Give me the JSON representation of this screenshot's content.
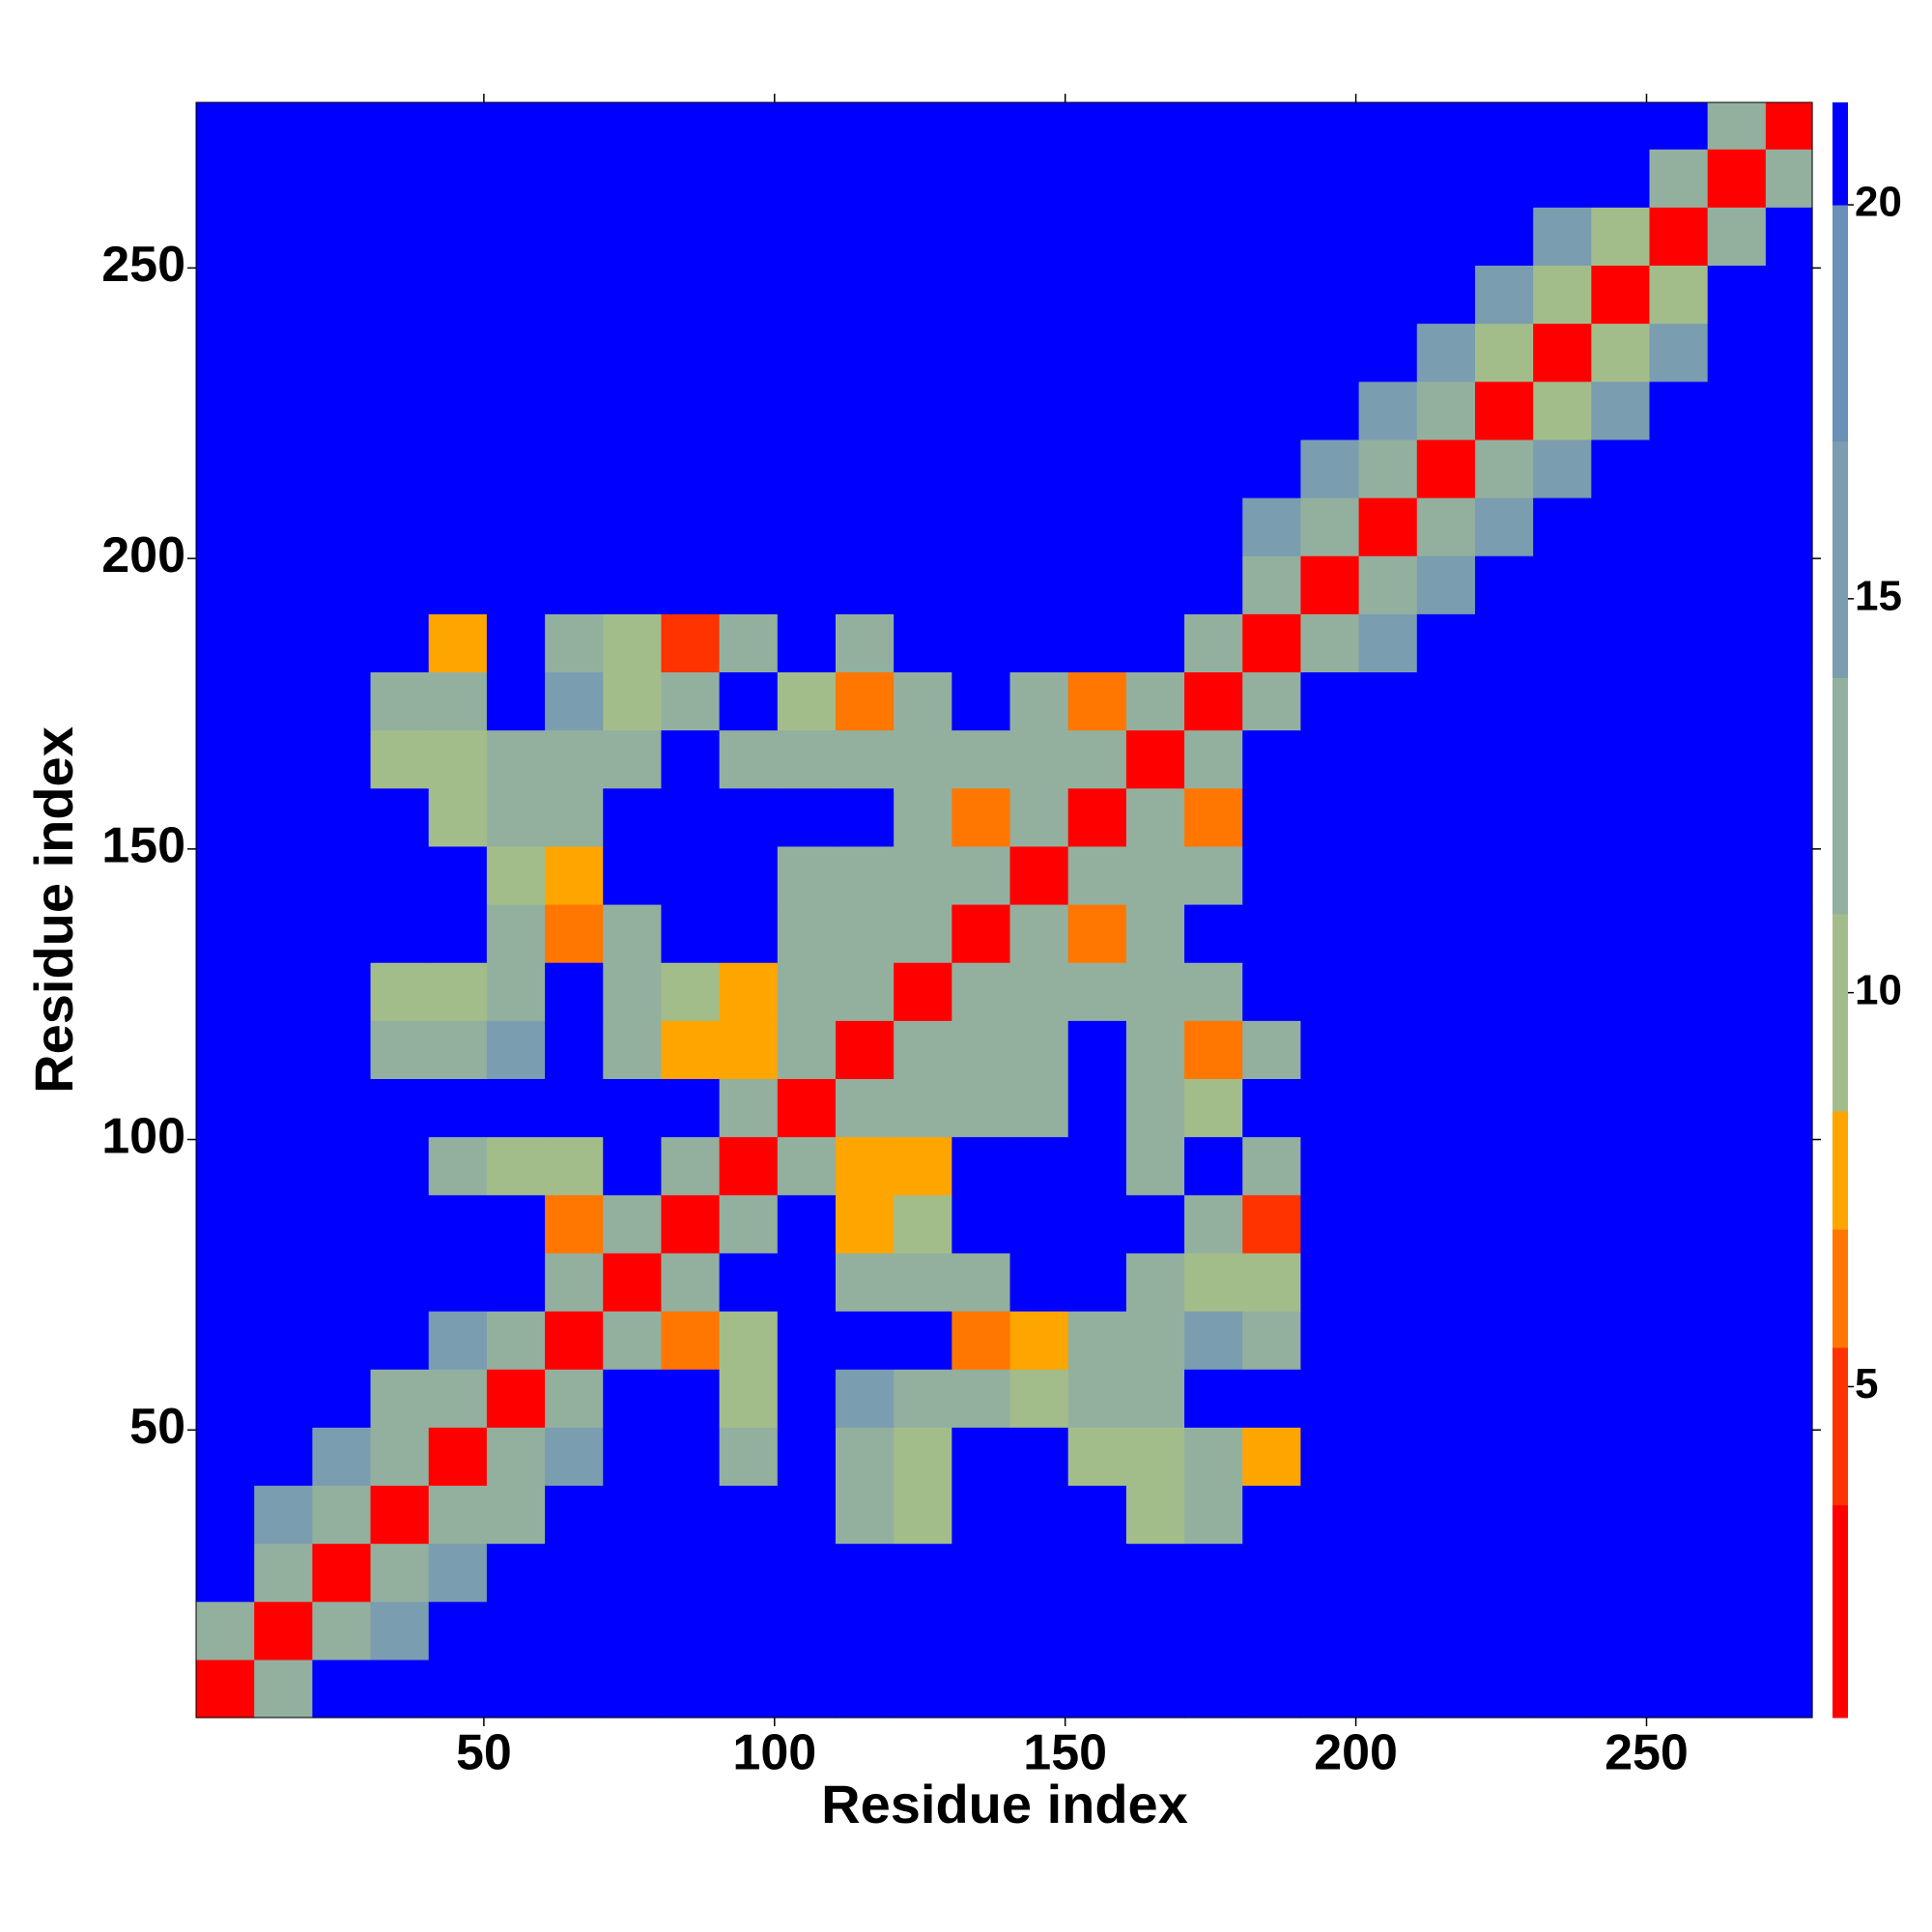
{
  "chart_data": {
    "type": "heatmap",
    "xlabel": "Residue index",
    "ylabel": "Residue index",
    "xlim": [
      0.5,
      278.5
    ],
    "ylim": [
      0.5,
      278.5
    ],
    "xticks": [
      50,
      100,
      150,
      200,
      250
    ],
    "yticks": [
      50,
      100,
      150,
      200,
      250
    ],
    "xbins": [
      0.5,
      10.5,
      20.5,
      30.5,
      40.5,
      50.5,
      60.5,
      70.5,
      80.5,
      90.5,
      100.5,
      110.5,
      120.5,
      130.5,
      140.5,
      150.5,
      160.5,
      170.5,
      180.5,
      190.5,
      200.5,
      210.5,
      220.5,
      230.5,
      240.5,
      250.5,
      260.5,
      270.5,
      278.5
    ],
    "ybins": [
      0.5,
      10.5,
      20.5,
      30.5,
      40.5,
      50.5,
      60.5,
      70.5,
      80.5,
      90.5,
      100.5,
      110.5,
      120.5,
      130.5,
      140.5,
      150.5,
      160.5,
      170.5,
      180.5,
      190.5,
      200.5,
      210.5,
      220.5,
      230.5,
      240.5,
      250.5,
      260.5,
      270.5,
      278.5
    ],
    "colorscale": [
      [
        0.8,
        "#ff0000"
      ],
      [
        3.5,
        "#ff3300"
      ],
      [
        5.5,
        "#ff7700"
      ],
      [
        7,
        "#ffa500"
      ],
      [
        8.5,
        "#a3bd8a"
      ],
      [
        11,
        "#93b09e"
      ],
      [
        14,
        "#7a9db0"
      ],
      [
        17,
        "#6890b8"
      ],
      [
        20,
        "#0000ff"
      ]
    ],
    "colorbar_lim": [
      0.8,
      21.3
    ],
    "colorbar_ticks": [
      5,
      10,
      15,
      20
    ],
    "z": [
      [
        3,
        11,
        21,
        21,
        21,
        21,
        21,
        21,
        21,
        21,
        21,
        21,
        21,
        21,
        21,
        21,
        21,
        21,
        21,
        21,
        21,
        21,
        21,
        21,
        21,
        21,
        21,
        21
      ],
      [
        11,
        3,
        11,
        14,
        21,
        21,
        21,
        21,
        21,
        21,
        21,
        21,
        21,
        21,
        21,
        21,
        21,
        21,
        21,
        21,
        21,
        21,
        21,
        21,
        21,
        21,
        21,
        21
      ],
      [
        21,
        11,
        3,
        11,
        14,
        21,
        21,
        21,
        21,
        21,
        21,
        21,
        21,
        21,
        21,
        21,
        21,
        21,
        21,
        21,
        21,
        21,
        21,
        21,
        21,
        21,
        21,
        21
      ],
      [
        21,
        14,
        11,
        3,
        11,
        13,
        21,
        21,
        21,
        21,
        21,
        12,
        9,
        21,
        21,
        21,
        9,
        11,
        21,
        21,
        21,
        21,
        21,
        21,
        21,
        21,
        21,
        21
      ],
      [
        21,
        21,
        14,
        11,
        3,
        11,
        14,
        21,
        21,
        12,
        21,
        12,
        9,
        21,
        21,
        10,
        9,
        11,
        8,
        21,
        21,
        21,
        21,
        21,
        21,
        21,
        21,
        21
      ],
      [
        21,
        21,
        21,
        13,
        11,
        3,
        11,
        21,
        21,
        9,
        21,
        14,
        12,
        11,
        10,
        11,
        13,
        21,
        21,
        21,
        21,
        21,
        21,
        21,
        21,
        21,
        21,
        21
      ],
      [
        21,
        21,
        21,
        21,
        14,
        11,
        3,
        11,
        6,
        10,
        21,
        21,
        21,
        6,
        8,
        11,
        13,
        14,
        11,
        21,
        21,
        21,
        21,
        21,
        21,
        21,
        21,
        21
      ],
      [
        21,
        21,
        21,
        21,
        21,
        21,
        11,
        3,
        11,
        21,
        21,
        11,
        13,
        12,
        21,
        21,
        13,
        9,
        10,
        21,
        21,
        21,
        21,
        21,
        21,
        21,
        21,
        21
      ],
      [
        21,
        21,
        21,
        21,
        21,
        21,
        6,
        11,
        3,
        11,
        21,
        7,
        10,
        21,
        21,
        21,
        21,
        11,
        5,
        21,
        21,
        21,
        21,
        21,
        21,
        21,
        21,
        21
      ],
      [
        21,
        21,
        21,
        21,
        12,
        9,
        10,
        21,
        11,
        3,
        11,
        8,
        7,
        21,
        21,
        21,
        12,
        21,
        12,
        21,
        21,
        21,
        21,
        21,
        21,
        21,
        21,
        21
      ],
      [
        21,
        21,
        21,
        21,
        21,
        21,
        21,
        21,
        21,
        11,
        3,
        11,
        11,
        12,
        12,
        21,
        11,
        10,
        21,
        21,
        21,
        21,
        21,
        21,
        21,
        21,
        21,
        21
      ],
      [
        21,
        21,
        21,
        12,
        12,
        14,
        21,
        11,
        7,
        8,
        11,
        3,
        11,
        12,
        12,
        21,
        11,
        6,
        13,
        21,
        21,
        21,
        21,
        21,
        21,
        21,
        21,
        21
      ],
      [
        21,
        21,
        21,
        9,
        9,
        12,
        21,
        13,
        10,
        7,
        11,
        11,
        3,
        11,
        11,
        11,
        12,
        11,
        21,
        21,
        21,
        21,
        21,
        21,
        21,
        21,
        21,
        21
      ],
      [
        21,
        21,
        21,
        21,
        21,
        11,
        6,
        12,
        21,
        21,
        12,
        12,
        11,
        3,
        11,
        6,
        12,
        21,
        21,
        21,
        21,
        21,
        21,
        21,
        21,
        21,
        21,
        21
      ],
      [
        21,
        21,
        21,
        21,
        21,
        10,
        8,
        21,
        21,
        21,
        12,
        12,
        11,
        11,
        3,
        11,
        11,
        11,
        21,
        21,
        21,
        21,
        21,
        21,
        21,
        21,
        21,
        21
      ],
      [
        21,
        21,
        21,
        21,
        10,
        11,
        11,
        21,
        21,
        21,
        21,
        21,
        11,
        6,
        11,
        3,
        11,
        6,
        21,
        21,
        21,
        21,
        21,
        21,
        21,
        21,
        21,
        21
      ],
      [
        21,
        21,
        21,
        9,
        9,
        13,
        13,
        13,
        21,
        12,
        11,
        11,
        12,
        12,
        11,
        11,
        3,
        11,
        21,
        21,
        21,
        21,
        21,
        21,
        21,
        21,
        21,
        21
      ],
      [
        21,
        21,
        21,
        11,
        11,
        21,
        14,
        9,
        11,
        21,
        10,
        6,
        11,
        21,
        11,
        6,
        11,
        3,
        11,
        21,
        21,
        21,
        21,
        21,
        21,
        21,
        21,
        21
      ],
      [
        21,
        21,
        21,
        21,
        8,
        21,
        11,
        10,
        5,
        12,
        21,
        13,
        21,
        21,
        21,
        21,
        21,
        11,
        3,
        11,
        14,
        21,
        21,
        21,
        21,
        21,
        21,
        21
      ],
      [
        21,
        21,
        21,
        21,
        21,
        21,
        21,
        21,
        21,
        21,
        21,
        21,
        21,
        21,
        21,
        21,
        21,
        21,
        11,
        3,
        11,
        14,
        21,
        21,
        21,
        21,
        21,
        21
      ],
      [
        21,
        21,
        21,
        21,
        21,
        21,
        21,
        21,
        21,
        21,
        21,
        21,
        21,
        21,
        21,
        21,
        21,
        21,
        14,
        11,
        3,
        11,
        14,
        21,
        21,
        21,
        21,
        21
      ],
      [
        21,
        21,
        21,
        21,
        21,
        21,
        21,
        21,
        21,
        21,
        21,
        21,
        21,
        21,
        21,
        21,
        21,
        21,
        21,
        14,
        11,
        3,
        11,
        14,
        21,
        21,
        21,
        21
      ],
      [
        21,
        21,
        21,
        21,
        21,
        21,
        21,
        21,
        21,
        21,
        21,
        21,
        21,
        21,
        21,
        21,
        21,
        21,
        21,
        21,
        14,
        11,
        3,
        10,
        14,
        21,
        21,
        21
      ],
      [
        21,
        21,
        21,
        21,
        21,
        21,
        21,
        21,
        21,
        21,
        21,
        21,
        21,
        21,
        21,
        21,
        21,
        21,
        21,
        21,
        21,
        14,
        10,
        3,
        10,
        14,
        21,
        21
      ],
      [
        21,
        21,
        21,
        21,
        21,
        21,
        21,
        21,
        21,
        21,
        21,
        21,
        21,
        21,
        21,
        21,
        21,
        21,
        21,
        21,
        21,
        21,
        14,
        10,
        3,
        10,
        21,
        21
      ],
      [
        21,
        21,
        21,
        21,
        21,
        21,
        21,
        21,
        21,
        21,
        21,
        21,
        21,
        21,
        21,
        21,
        21,
        21,
        21,
        21,
        21,
        21,
        21,
        14,
        10,
        3,
        11,
        21
      ],
      [
        21,
        21,
        21,
        21,
        21,
        21,
        21,
        21,
        21,
        21,
        21,
        21,
        21,
        21,
        21,
        21,
        21,
        21,
        21,
        21,
        21,
        21,
        21,
        21,
        21,
        11,
        3,
        11
      ],
      [
        21,
        21,
        21,
        21,
        21,
        21,
        21,
        21,
        21,
        21,
        21,
        21,
        21,
        21,
        21,
        21,
        21,
        21,
        21,
        21,
        21,
        21,
        21,
        21,
        21,
        21,
        11,
        3
      ]
    ]
  }
}
